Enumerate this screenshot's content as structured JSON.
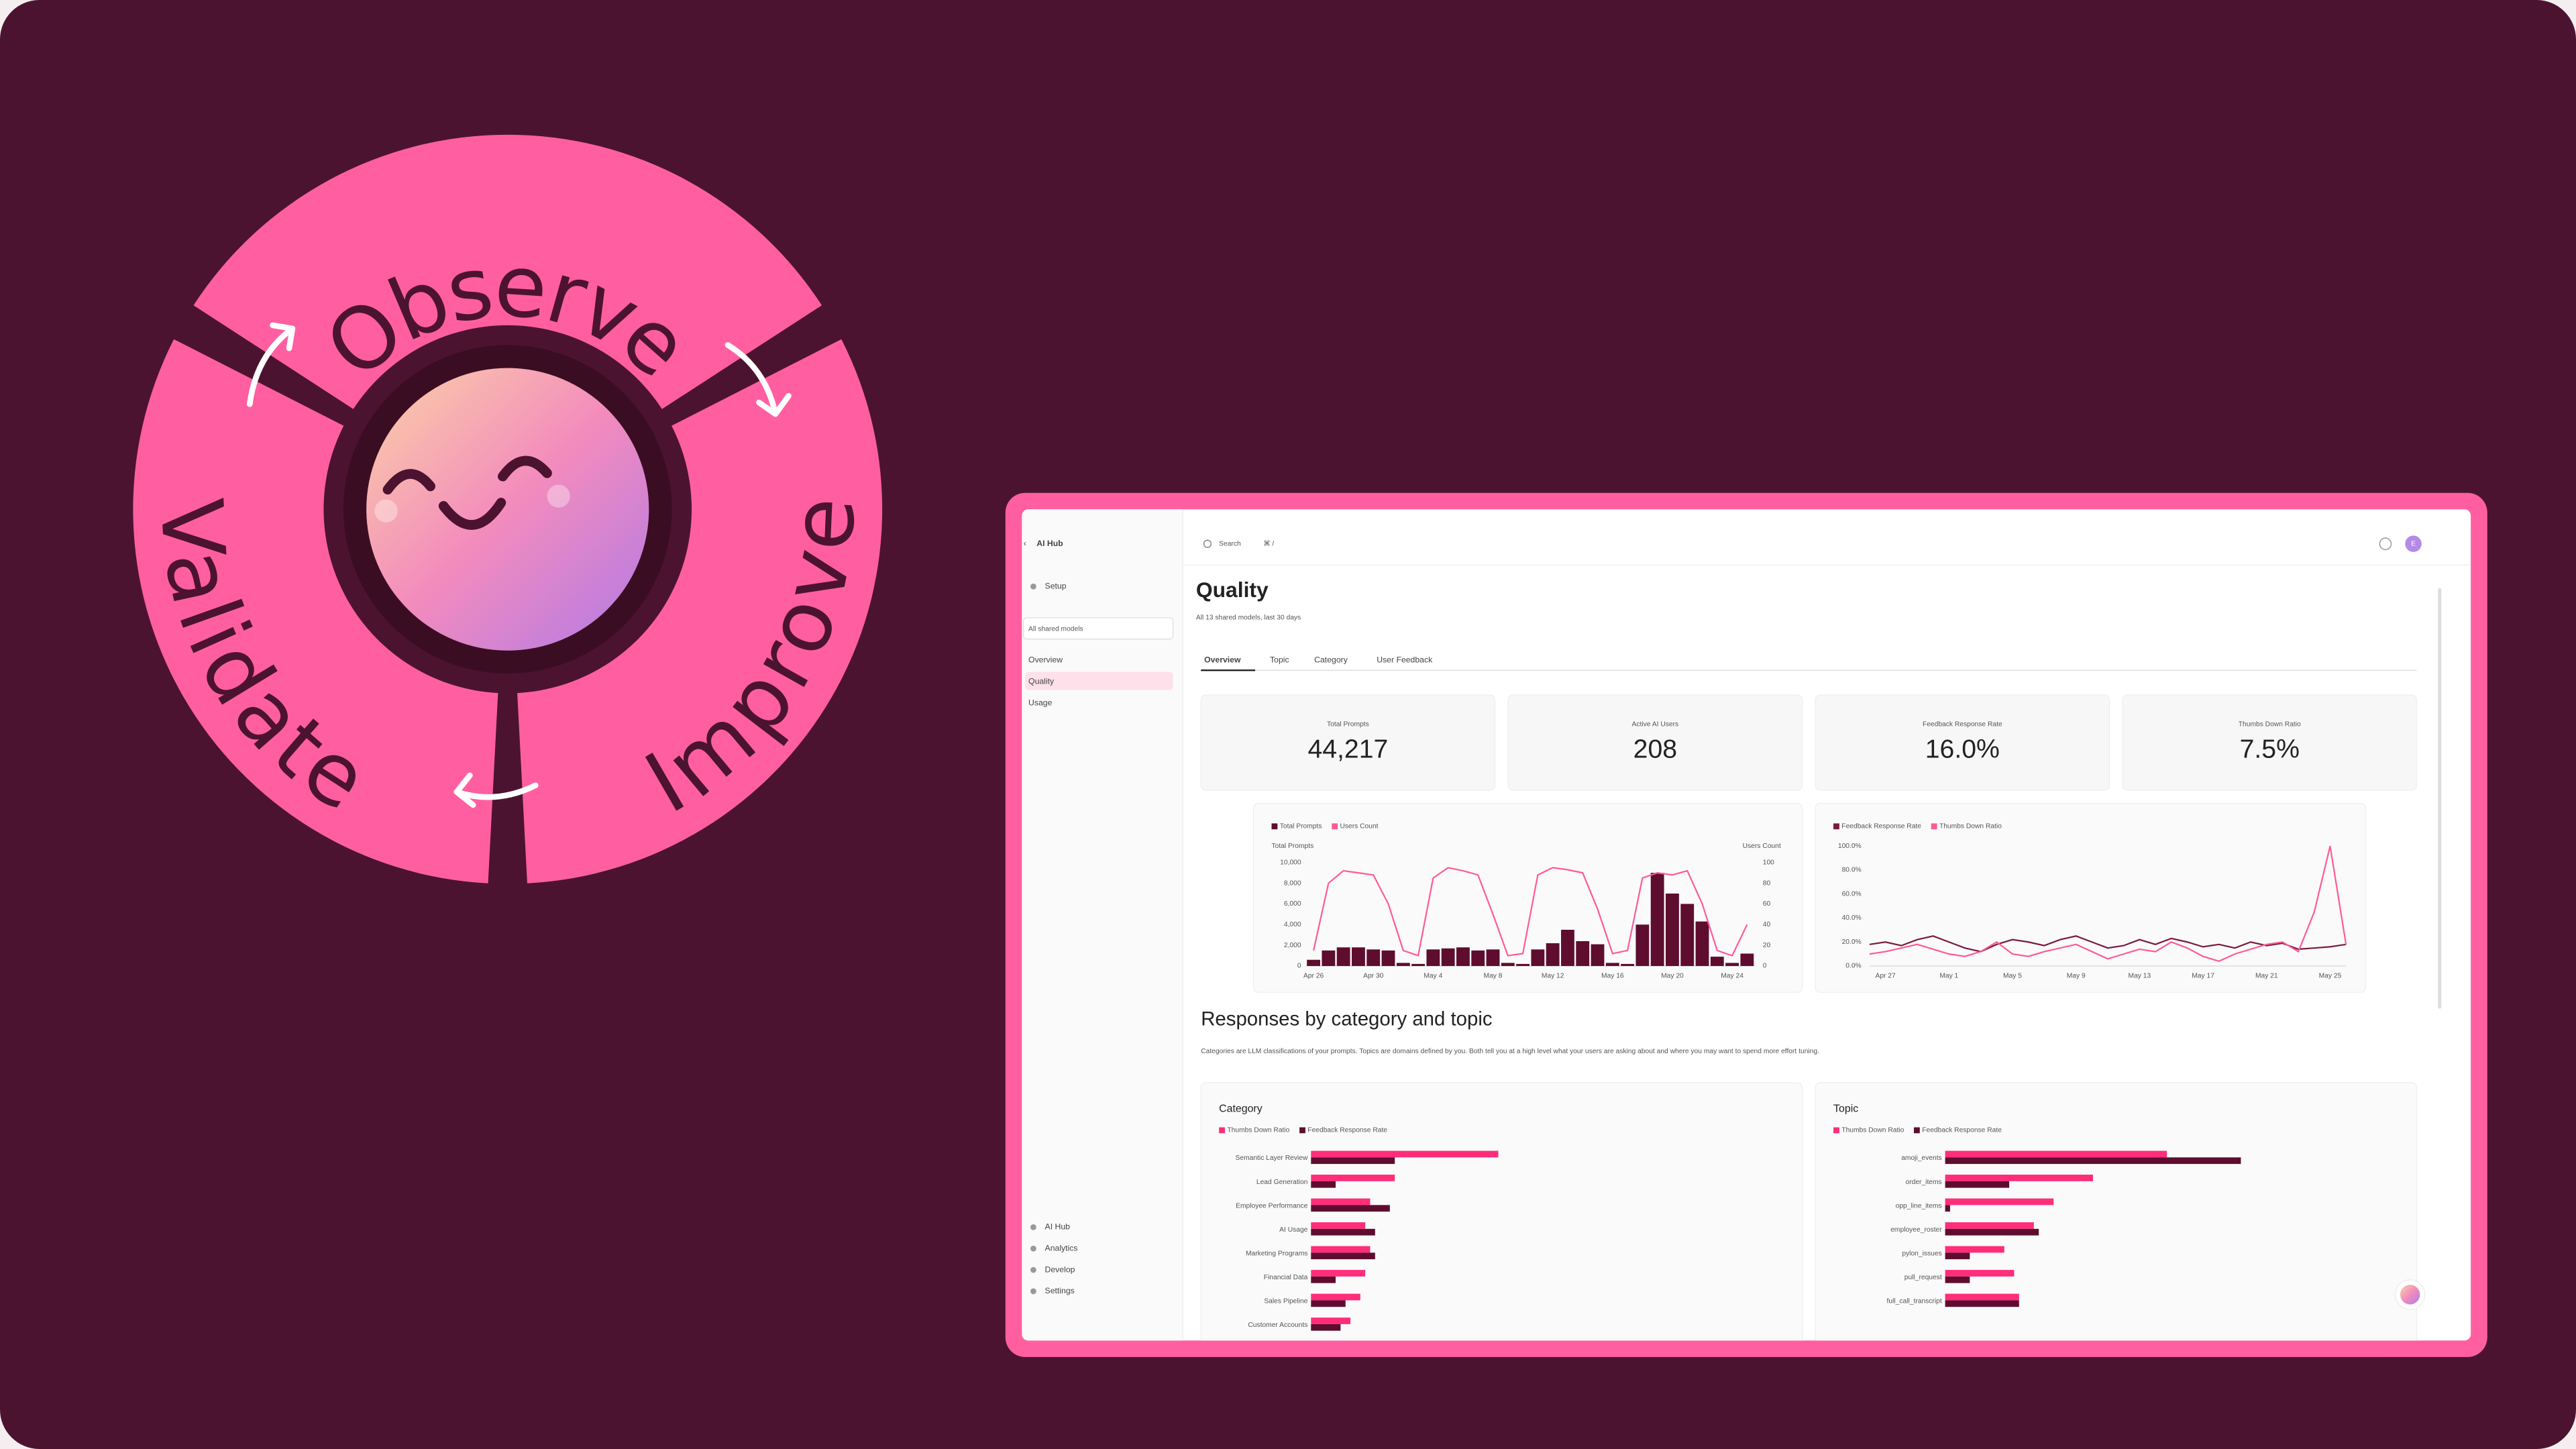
{
  "cycle": {
    "labels": [
      "Observe",
      "Improve",
      "Validate"
    ]
  },
  "sidebar": {
    "back": "AI Hub",
    "setup": "Setup",
    "model_select": "All shared models",
    "nav": [
      "Overview",
      "Quality",
      "Usage"
    ],
    "footer": [
      "AI Hub",
      "Analytics",
      "Develop",
      "Settings"
    ]
  },
  "topbar": {
    "search": "Search",
    "shortcut": "⌘ /",
    "avatar": "E"
  },
  "header": {
    "title": "Quality",
    "subtitle": "All 13 shared models, last 30 days"
  },
  "tabs": [
    "Overview",
    "Topic",
    "Category",
    "User Feedback"
  ],
  "stats": [
    {
      "label": "Total Prompts",
      "value": "44,217"
    },
    {
      "label": "Active AI Users",
      "value": "208"
    },
    {
      "label": "Feedback Response Rate",
      "value": "16.0%"
    },
    {
      "label": "Thumbs Down Ratio",
      "value": "7.5%"
    }
  ],
  "section": {
    "title": "Responses by category and topic",
    "description": "Categories are LLM classifications of your prompts. Topics are domains defined by you. Both tell you at a high level what your users are asking about and where you may want to spend more effort tuning."
  },
  "chart_data": [
    {
      "type": "combo",
      "ylabel": "Total Prompts",
      "y2label": "Users Count",
      "categories": [
        "Apr 26",
        null,
        null,
        null,
        "Apr 30",
        null,
        null,
        null,
        "May 4",
        null,
        null,
        null,
        "May 8",
        null,
        null,
        null,
        "May 12",
        null,
        null,
        null,
        "May 16",
        null,
        null,
        null,
        "May 20",
        null,
        null,
        null,
        "May 24",
        null
      ],
      "series": [
        {
          "name": "Total Prompts",
          "color": "#5e0d2f",
          "mark": "bar",
          "values": [
            600,
            1500,
            1800,
            1800,
            1600,
            1500,
            300,
            200,
            1600,
            1700,
            1800,
            1500,
            1600,
            300,
            200,
            1600,
            2200,
            3500,
            2400,
            2100,
            300,
            200,
            4000,
            9000,
            7000,
            6000,
            4300,
            900,
            300,
            1200
          ]
        },
        {
          "name": "Users Count",
          "color": "#ff5a96",
          "mark": "line",
          "axis": "y2",
          "values": [
            15,
            80,
            92,
            90,
            88,
            60,
            15,
            10,
            85,
            95,
            92,
            88,
            50,
            10,
            12,
            88,
            95,
            93,
            90,
            55,
            12,
            15,
            85,
            90,
            88,
            92,
            60,
            15,
            10,
            40
          ]
        }
      ],
      "ylim": [
        0,
        10000
      ],
      "yticks": [
        0,
        {
          "value": 2000,
          "label": "2,000"
        },
        {
          "value": 4000,
          "label": "4,000"
        },
        {
          "value": 6000,
          "label": "6,000"
        },
        {
          "value": 8000,
          "label": "8,000"
        },
        {
          "value": 10000,
          "label": "10,000"
        }
      ],
      "y2lim": [
        0,
        100
      ],
      "y2ticks": [
        0,
        20,
        40,
        60,
        80,
        100
      ]
    },
    {
      "type": "line",
      "categories": [
        null,
        "Apr 27",
        null,
        null,
        null,
        "May 1",
        null,
        null,
        null,
        "May 5",
        null,
        null,
        null,
        "May 9",
        null,
        null,
        null,
        "May 13",
        null,
        null,
        null,
        "May 17",
        null,
        null,
        null,
        "May 21",
        null,
        null,
        null,
        "May 25",
        null
      ],
      "series": [
        {
          "name": "Feedback Response Rate",
          "color": "#7a1a3f",
          "values": [
            18,
            20,
            17,
            22,
            25,
            20,
            15,
            12,
            18,
            22,
            20,
            17,
            22,
            25,
            20,
            15,
            17,
            22,
            18,
            23,
            20,
            16,
            18,
            15,
            20,
            17,
            19,
            14,
            15,
            16,
            18
          ]
        },
        {
          "name": "Thumbs Down Ratio",
          "color": "#ff5a96",
          "values": [
            10,
            12,
            15,
            18,
            14,
            10,
            8,
            12,
            20,
            10,
            8,
            12,
            15,
            18,
            12,
            6,
            10,
            14,
            12,
            20,
            15,
            8,
            4,
            10,
            14,
            18,
            20,
            12,
            45,
            100,
            18
          ]
        }
      ],
      "ylim": [
        0,
        100
      ],
      "yticks": [
        {
          "value": 0,
          "label": "0.0%"
        },
        {
          "value": 20,
          "label": "20.0%"
        },
        {
          "value": 40,
          "label": "40.0%"
        },
        {
          "value": 60,
          "label": "60.0%"
        },
        {
          "value": 80,
          "label": "80.0%"
        },
        {
          "value": 100,
          "label": "100.0%"
        }
      ]
    },
    {
      "type": "hbar",
      "title": "Category",
      "categories": [
        "Semantic Layer Review",
        "Lead Generation",
        "Employee Performance",
        "AI Usage",
        "Marketing Programs",
        "Financial Data",
        "Sales Pipeline",
        "Customer Accounts"
      ],
      "series": [
        {
          "name": "Thumbs Down Ratio",
          "color": "#ff2d7a",
          "values": [
            38,
            17,
            12,
            11,
            12,
            11,
            10,
            8
          ]
        },
        {
          "name": "Feedback Response Rate",
          "color": "#5e0d2f",
          "values": [
            17,
            5,
            16,
            13,
            13,
            5,
            7,
            6
          ]
        }
      ]
    },
    {
      "type": "hbar",
      "title": "Topic",
      "categories": [
        "amoji_events",
        "order_items",
        "opp_line_items",
        "employee_roster",
        "pylon_issues",
        "pull_request",
        "full_call_transcript"
      ],
      "series": [
        {
          "name": "Thumbs Down Ratio",
          "color": "#ff2d7a",
          "values": [
            45,
            30,
            22,
            18,
            12,
            14,
            15
          ]
        },
        {
          "name": "Feedback Response Rate",
          "color": "#5e0d2f",
          "values": [
            60,
            13,
            1,
            19,
            5,
            5,
            15
          ]
        }
      ]
    }
  ]
}
